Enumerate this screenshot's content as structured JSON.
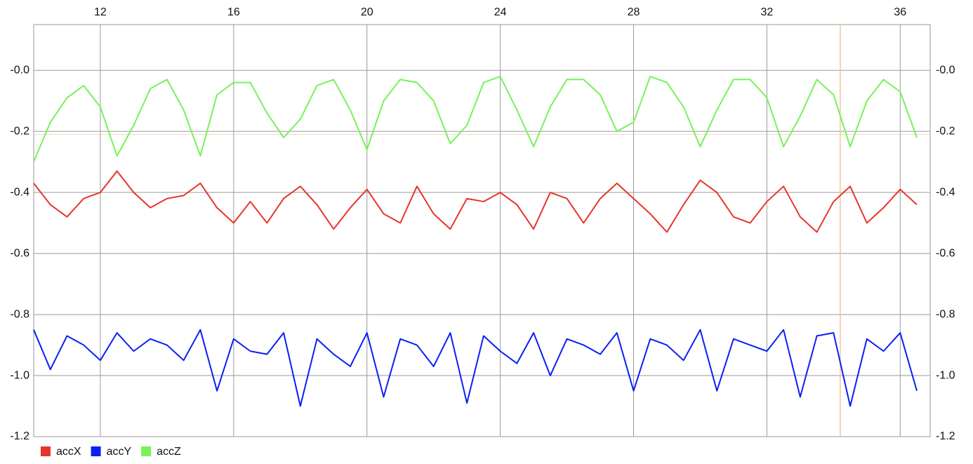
{
  "chart_data": {
    "type": "line",
    "x": [
      10,
      10.5,
      11,
      11.5,
      12,
      12.5,
      13,
      13.5,
      14,
      14.5,
      15,
      15.5,
      16,
      16.5,
      17,
      17.5,
      18,
      18.5,
      19,
      19.5,
      20,
      20.5,
      21,
      21.5,
      22,
      22.5,
      23,
      23.5,
      24,
      24.5,
      25,
      25.5,
      26,
      26.5,
      27,
      27.5,
      28,
      28.5,
      29,
      29.5,
      30,
      30.5,
      31,
      31.5,
      32,
      32.5,
      33,
      33.5,
      34,
      34.5,
      35,
      35.5,
      36,
      36.5
    ],
    "series": [
      {
        "name": "accX",
        "color": "#e8352a",
        "values": [
          -0.37,
          -0.44,
          -0.48,
          -0.42,
          -0.4,
          -0.33,
          -0.4,
          -0.45,
          -0.42,
          -0.41,
          -0.37,
          -0.45,
          -0.5,
          -0.43,
          -0.5,
          -0.42,
          -0.38,
          -0.44,
          -0.52,
          -0.45,
          -0.39,
          -0.47,
          -0.5,
          -0.38,
          -0.47,
          -0.52,
          -0.42,
          -0.43,
          -0.4,
          -0.44,
          -0.52,
          -0.4,
          -0.42,
          -0.5,
          -0.42,
          -0.37,
          -0.42,
          -0.47,
          -0.53,
          -0.44,
          -0.36,
          -0.4,
          -0.48,
          -0.5,
          -0.43,
          -0.38,
          -0.48,
          -0.53,
          -0.43,
          -0.38,
          -0.5,
          -0.45,
          -0.39,
          -0.44
        ]
      },
      {
        "name": "accY",
        "color": "#0a1ff5",
        "values": [
          -0.85,
          -0.98,
          -0.87,
          -0.9,
          -0.95,
          -0.86,
          -0.92,
          -0.88,
          -0.9,
          -0.95,
          -0.85,
          -1.05,
          -0.88,
          -0.92,
          -0.93,
          -0.86,
          -1.1,
          -0.88,
          -0.93,
          -0.97,
          -0.86,
          -1.07,
          -0.88,
          -0.9,
          -0.97,
          -0.86,
          -1.09,
          -0.87,
          -0.92,
          -0.96,
          -0.86,
          -1.0,
          -0.88,
          -0.9,
          -0.93,
          -0.86,
          -1.05,
          -0.88,
          -0.9,
          -0.95,
          -0.85,
          -1.05,
          -0.88,
          -0.9,
          -0.92,
          -0.85,
          -1.07,
          -0.87,
          -0.86,
          -1.1,
          -0.88,
          -0.92,
          -0.86,
          -1.05
        ]
      },
      {
        "name": "accZ",
        "color": "#77f25a",
        "values": [
          -0.3,
          -0.17,
          -0.09,
          -0.05,
          -0.12,
          -0.28,
          -0.18,
          -0.06,
          -0.03,
          -0.13,
          -0.28,
          -0.08,
          -0.04,
          -0.04,
          -0.14,
          -0.22,
          -0.16,
          -0.05,
          -0.03,
          -0.13,
          -0.26,
          -0.1,
          -0.03,
          -0.04,
          -0.1,
          -0.24,
          -0.18,
          -0.04,
          -0.02,
          -0.13,
          -0.25,
          -0.12,
          -0.03,
          -0.03,
          -0.08,
          -0.2,
          -0.17,
          -0.02,
          -0.04,
          -0.12,
          -0.25,
          -0.13,
          -0.03,
          -0.03,
          -0.09,
          -0.25,
          -0.15,
          -0.03,
          -0.08,
          -0.25,
          -0.1,
          -0.03,
          -0.07,
          -0.22
        ]
      }
    ],
    "xlim": [
      10,
      36.9
    ],
    "xticks": [
      12,
      16,
      20,
      24,
      28,
      32,
      36
    ],
    "ylim": [
      -1.2,
      0.15
    ],
    "yticks": [
      {
        "value": 0,
        "label": "-0.0"
      },
      -0.2,
      -0.4,
      -0.6,
      -0.8,
      {
        "value": -1,
        "label": "-1.0"
      },
      -1.2
    ],
    "grid": true,
    "legend": "bottom-left",
    "highlight": {
      "x": 34.2,
      "y": -0.21,
      "color": "#f5c49a"
    }
  }
}
